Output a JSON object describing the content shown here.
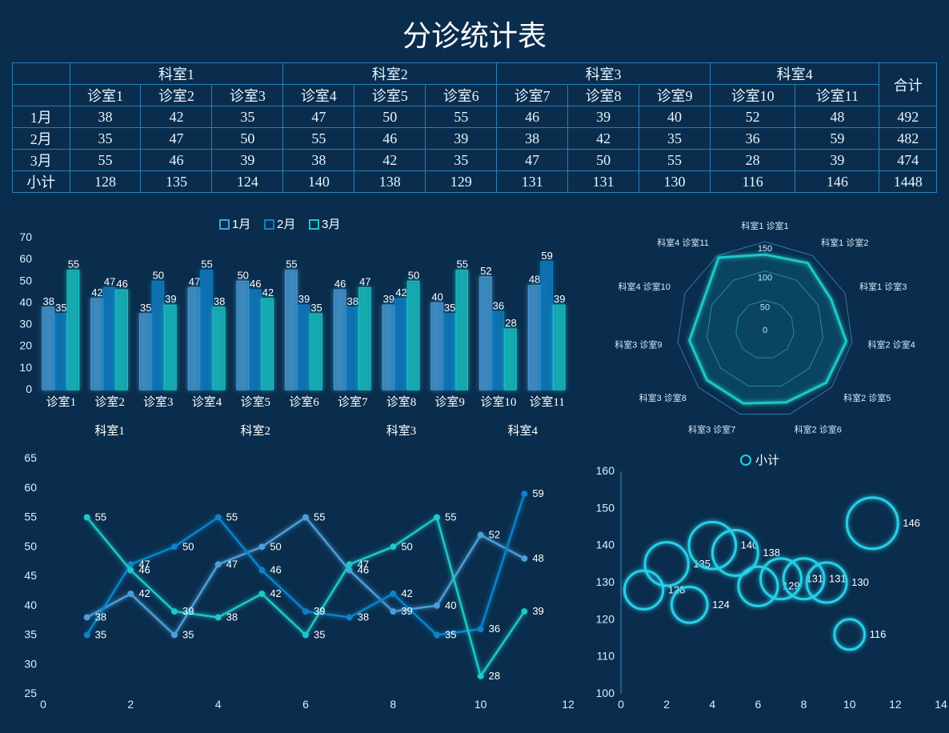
{
  "title": "分诊统计表",
  "departments": [
    "科室1",
    "科室2",
    "科室3",
    "科室4"
  ],
  "rooms_per_dept": [
    3,
    3,
    3,
    2
  ],
  "rooms": [
    "诊室1",
    "诊室2",
    "诊室3",
    "诊室4",
    "诊室5",
    "诊室6",
    "诊室7",
    "诊室8",
    "诊室9",
    "诊室10",
    "诊室11"
  ],
  "total_label": "合计",
  "subtotal_label": "小计",
  "months": [
    "1月",
    "2月",
    "3月"
  ],
  "data": {
    "1月": [
      38,
      42,
      35,
      47,
      50,
      55,
      46,
      39,
      40,
      52,
      48
    ],
    "2月": [
      35,
      47,
      50,
      55,
      46,
      39,
      38,
      42,
      35,
      36,
      59
    ],
    "3月": [
      55,
      46,
      39,
      38,
      42,
      35,
      47,
      50,
      55,
      28,
      39
    ]
  },
  "row_totals": [
    492,
    482,
    474
  ],
  "col_subtotals": [
    128,
    135,
    124,
    140,
    138,
    129,
    131,
    131,
    130,
    116,
    146
  ],
  "grand_total": 1448,
  "colors": {
    "bg": "#0a2d4d",
    "border": "#2a7fb8",
    "text": "#e8f4ff",
    "series": {
      "1月": "#4a9fd8",
      "2月": "#0d82c8",
      "3月": "#1cc8c8"
    },
    "glow": "#1cc8c8",
    "bubble": "#25d0e8",
    "radar_line": "#1cc8c8",
    "radar_grid": "#3a8abf"
  },
  "bar_chart": {
    "type": "bar",
    "y_ticks": [
      0,
      10,
      20,
      30,
      40,
      50,
      60,
      70
    ],
    "ylim": [
      0,
      70
    ],
    "bar_gap": 1,
    "group_gap": 14
  },
  "radar": {
    "rings": [
      0,
      50,
      100,
      150
    ],
    "max": 150,
    "label_fontsize": 11
  },
  "line_chart": {
    "type": "line",
    "y_ticks": [
      25,
      30,
      35,
      40,
      45,
      50,
      55,
      60,
      65
    ],
    "x_ticks": [
      0,
      2,
      4,
      6,
      8,
      10,
      12
    ],
    "ylim": [
      25,
      65
    ],
    "xlim": [
      0,
      12
    ],
    "marker": "circle",
    "marker_size": 4,
    "line_width": 2
  },
  "bubble_chart": {
    "type": "bubble",
    "legend": "小计",
    "y_ticks": [
      100,
      110,
      120,
      130,
      140,
      150,
      160
    ],
    "x_ticks": [
      0,
      2,
      4,
      6,
      8,
      10,
      12,
      14
    ],
    "ylim": [
      100,
      160
    ],
    "xlim": [
      0,
      14
    ],
    "bubble_stroke_width": 3,
    "bubble_glow": true
  }
}
